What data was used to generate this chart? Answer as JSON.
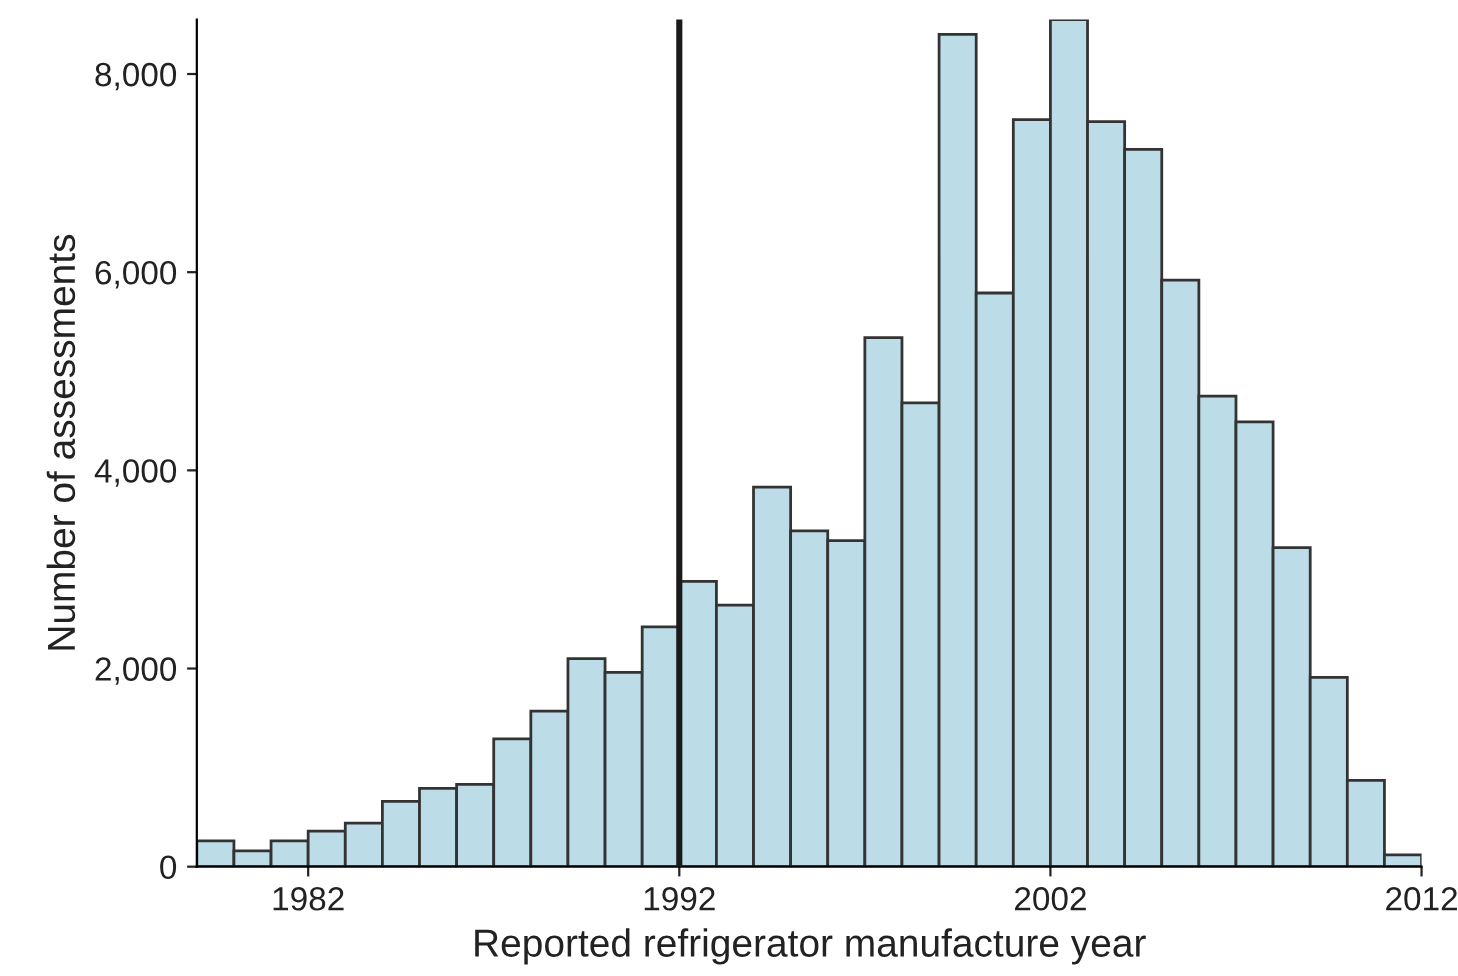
{
  "chart_data": {
    "type": "histogram",
    "xlabel": "Reported refrigerator manufacture year",
    "ylabel": "Number of assessments",
    "bins": [
      1979,
      1980,
      1981,
      1982,
      1983,
      1984,
      1985,
      1986,
      1987,
      1988,
      1989,
      1990,
      1991,
      1992,
      1993,
      1994,
      1995,
      1996,
      1997,
      1998,
      1999,
      2000,
      2001,
      2002,
      2003,
      2004,
      2005,
      2006,
      2007,
      2008,
      2009,
      2010,
      2011,
      2012
    ],
    "values": [
      260,
      160,
      260,
      360,
      440,
      660,
      790,
      830,
      1290,
      1570,
      2100,
      1960,
      2420,
      2880,
      2640,
      3830,
      3390,
      3290,
      5340,
      4680,
      8400,
      5790,
      7540,
      8550,
      7520,
      7240,
      5920,
      4750,
      4490,
      3220,
      1910,
      870,
      120
    ],
    "color": "#bcdde8",
    "xlim": [
      1979,
      2012
    ],
    "xticks": [
      1982,
      1992,
      2002,
      2012
    ],
    "ylim": [
      0,
      8550
    ],
    "yticks": [
      {
        "value": 0,
        "label": "0"
      },
      {
        "value": 2000,
        "label": "2,000"
      },
      {
        "value": 4000,
        "label": "4,000"
      },
      {
        "value": 6000,
        "label": "6,000"
      },
      {
        "value": 8000,
        "label": "8,000"
      }
    ],
    "ref_lines": [
      {
        "axis": "x",
        "value": 1992,
        "color": "#1a1a1a"
      }
    ],
    "grid": false
  }
}
